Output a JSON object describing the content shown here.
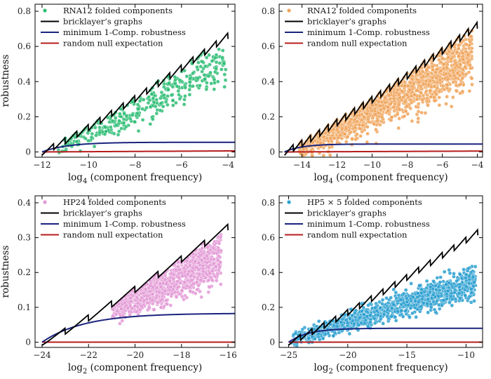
{
  "figure": {
    "ylabel": "robustness",
    "legend_common": [
      "bricklayer’s graphs",
      "minimum 1-Comp. robustness",
      "random null expectation"
    ]
  },
  "colors": {
    "bricklayer": "#000000",
    "minimum": "#1a237e",
    "random": "#b71c1c",
    "rna_left": "#2ebd74",
    "rna_right": "#f0a45c",
    "hp24": "#e39ad6",
    "hp55": "#2a9fd0"
  },
  "chart_data": [
    {
      "id": "panel-a",
      "type": "scatter",
      "title": "",
      "xlabel": "log",
      "xlabel_sub": "4",
      "xlabel_rest": " (component frequency)",
      "ylabel": "robustness",
      "xlim": [
        -12.3,
        -3.7
      ],
      "ylim": [
        -0.03,
        0.84
      ],
      "xticks": [
        -12,
        -10,
        -8,
        -6,
        -4
      ],
      "yticks": [
        0,
        0.2,
        0.4,
        0.6,
        0.8
      ],
      "ytick_labels": [
        "0",
        "0.2",
        "0.4",
        "0.6",
        "0.8"
      ],
      "color_key": "rna_left",
      "legend": [
        "RNA12 folded components",
        "bricklayer’s graphs",
        "minimum 1-Comp. robustness",
        "random null expectation"
      ],
      "brick": {
        "x0": -12,
        "x1": -4,
        "y1": 0.66,
        "steps": 16
      },
      "minimum": {
        "plateau": 0.055,
        "rate": 0.9
      },
      "random": {
        "y0": 0.0,
        "y1": 0.006
      },
      "scatter": {
        "x_min": -11.3,
        "x_max": -4.1,
        "n": 380,
        "spread": 0.07,
        "seed": 11
      }
    },
    {
      "id": "panel-b",
      "type": "scatter",
      "title": "",
      "xlabel": "log",
      "xlabel_sub": "4",
      "xlabel_rest": " (component frequency)",
      "ylabel": "",
      "xlim": [
        -15.3,
        -3.7
      ],
      "ylim": [
        -0.03,
        0.84
      ],
      "xticks": [
        -14,
        -12,
        -10,
        -8,
        -6,
        -4
      ],
      "yticks": [
        0,
        0.2,
        0.4,
        0.6,
        0.8
      ],
      "ytick_labels": [
        "0",
        "0.2",
        "0.4",
        "0.6",
        "0.8"
      ],
      "color_key": "rna_right",
      "legend": [
        "RNA12 folded components",
        "bricklayer’s graphs",
        "minimum 1-Comp. robustness",
        "random null expectation"
      ],
      "brick": {
        "x0": -15,
        "x1": -4,
        "y1": 0.72,
        "steps": 22
      },
      "minimum": {
        "plateau": 0.045,
        "rate": 1.0
      },
      "random": {
        "y0": 0.0,
        "y1": 0.005
      },
      "scatter": {
        "x_min": -14.2,
        "x_max": -4.3,
        "n": 1500,
        "spread": 0.08,
        "seed": 23
      }
    },
    {
      "id": "panel-c",
      "type": "scatter",
      "title": "",
      "xlabel": "log",
      "xlabel_sub": "2",
      "xlabel_rest": " (component frequency)",
      "ylabel": "robustness",
      "xlim": [
        -24.3,
        -15.7
      ],
      "ylim": [
        -0.015,
        0.42
      ],
      "xticks": [
        -24,
        -22,
        -20,
        -18,
        -16
      ],
      "yticks": [
        0,
        0.1,
        0.2,
        0.3,
        0.4
      ],
      "ytick_labels": [
        "0",
        "0.1",
        "0.2",
        "0.3",
        "0.4"
      ],
      "color_key": "hp24",
      "legend": [
        "HP24 folded components",
        "bricklayer’s graphs",
        "minimum 1-Comp. robustness",
        "random null expectation"
      ],
      "brick": {
        "x0": -24,
        "x1": -16,
        "y1": 0.33,
        "steps": 8
      },
      "minimum": {
        "plateau": 0.083,
        "rate": 0.55
      },
      "random": {
        "y0": 0.0,
        "y1": 0.0
      },
      "scatter": {
        "x_min": -21.0,
        "x_max": -16.3,
        "n": 1100,
        "spread": 0.035,
        "seed": 37
      }
    },
    {
      "id": "panel-d",
      "type": "scatter",
      "title": "",
      "xlabel": "log",
      "xlabel_sub": "2",
      "xlabel_rest": " (component frequency)",
      "ylabel": "",
      "xlim": [
        -25.8,
        -8.6
      ],
      "ylim": [
        -0.03,
        0.84
      ],
      "xticks": [
        -25,
        -20,
        -15,
        -10
      ],
      "yticks": [
        0,
        0.2,
        0.4,
        0.6,
        0.8
      ],
      "ytick_labels": [
        "0",
        "0.2",
        "0.4",
        "0.6",
        "0.8"
      ],
      "color_key": "hp55",
      "legend": [
        "HP5 × 5 folded components",
        "bricklayer’s graphs",
        "minimum 1-Comp. robustness",
        "random null expectation"
      ],
      "brick": {
        "x0": -25,
        "x1": -9,
        "y1": 0.63,
        "steps": 16
      },
      "minimum": {
        "plateau": 0.08,
        "rate": 0.6
      },
      "random": {
        "y0": 0.0,
        "y1": 0.0
      },
      "scatter": {
        "x_min": -24.8,
        "x_max": -9.2,
        "n": 1200,
        "spread": 0.045,
        "seed": 53,
        "lin": [
          0.01,
          0.35
        ]
      }
    }
  ]
}
